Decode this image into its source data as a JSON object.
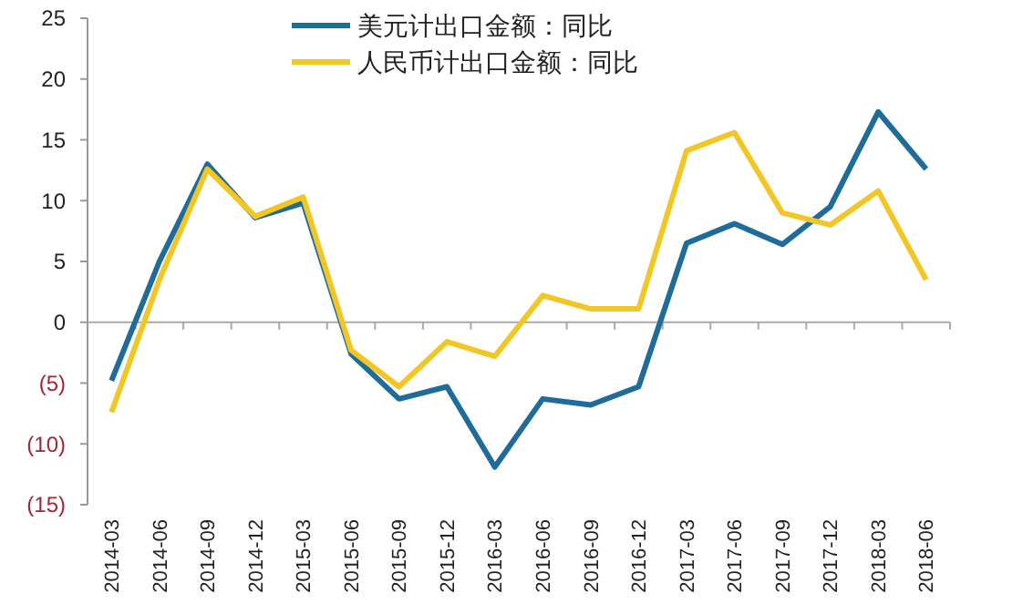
{
  "chart_data": {
    "type": "line",
    "categories": [
      "2014-03",
      "2014-06",
      "2014-09",
      "2014-12",
      "2015-03",
      "2015-06",
      "2015-09",
      "2015-12",
      "2016-03",
      "2016-06",
      "2016-09",
      "2016-12",
      "2017-03",
      "2017-06",
      "2017-09",
      "2017-12",
      "2018-03",
      "2018-06"
    ],
    "series": [
      {
        "name": "美元计出口金额：同比",
        "color": "#1f6b9a",
        "values": [
          -4.8,
          5,
          13,
          8.6,
          9.8,
          -2.6,
          -6.3,
          -5.3,
          -11.9,
          -6.3,
          -6.8,
          -5.3,
          6.5,
          8.1,
          6.4,
          9.5,
          17.3,
          12.6
        ]
      },
      {
        "name": "人民币计出口金额：同比",
        "color": "#f2c624",
        "values": [
          -7.4,
          3.5,
          12.6,
          8.7,
          10.3,
          -2.3,
          -5.3,
          -1.6,
          -2.8,
          2.2,
          1.1,
          1.1,
          14.1,
          15.6,
          9.0,
          8.0,
          10.8,
          3.5
        ]
      }
    ],
    "ylim": [
      -15,
      25
    ],
    "yticks": [
      {
        "value": -15,
        "label": "(15)"
      },
      {
        "value": -10,
        "label": "(10)"
      },
      {
        "value": -5,
        "label": "(5)"
      },
      0,
      5,
      10,
      15,
      20,
      25
    ],
    "legend": "top",
    "marker": "none",
    "line_style": "solid"
  }
}
